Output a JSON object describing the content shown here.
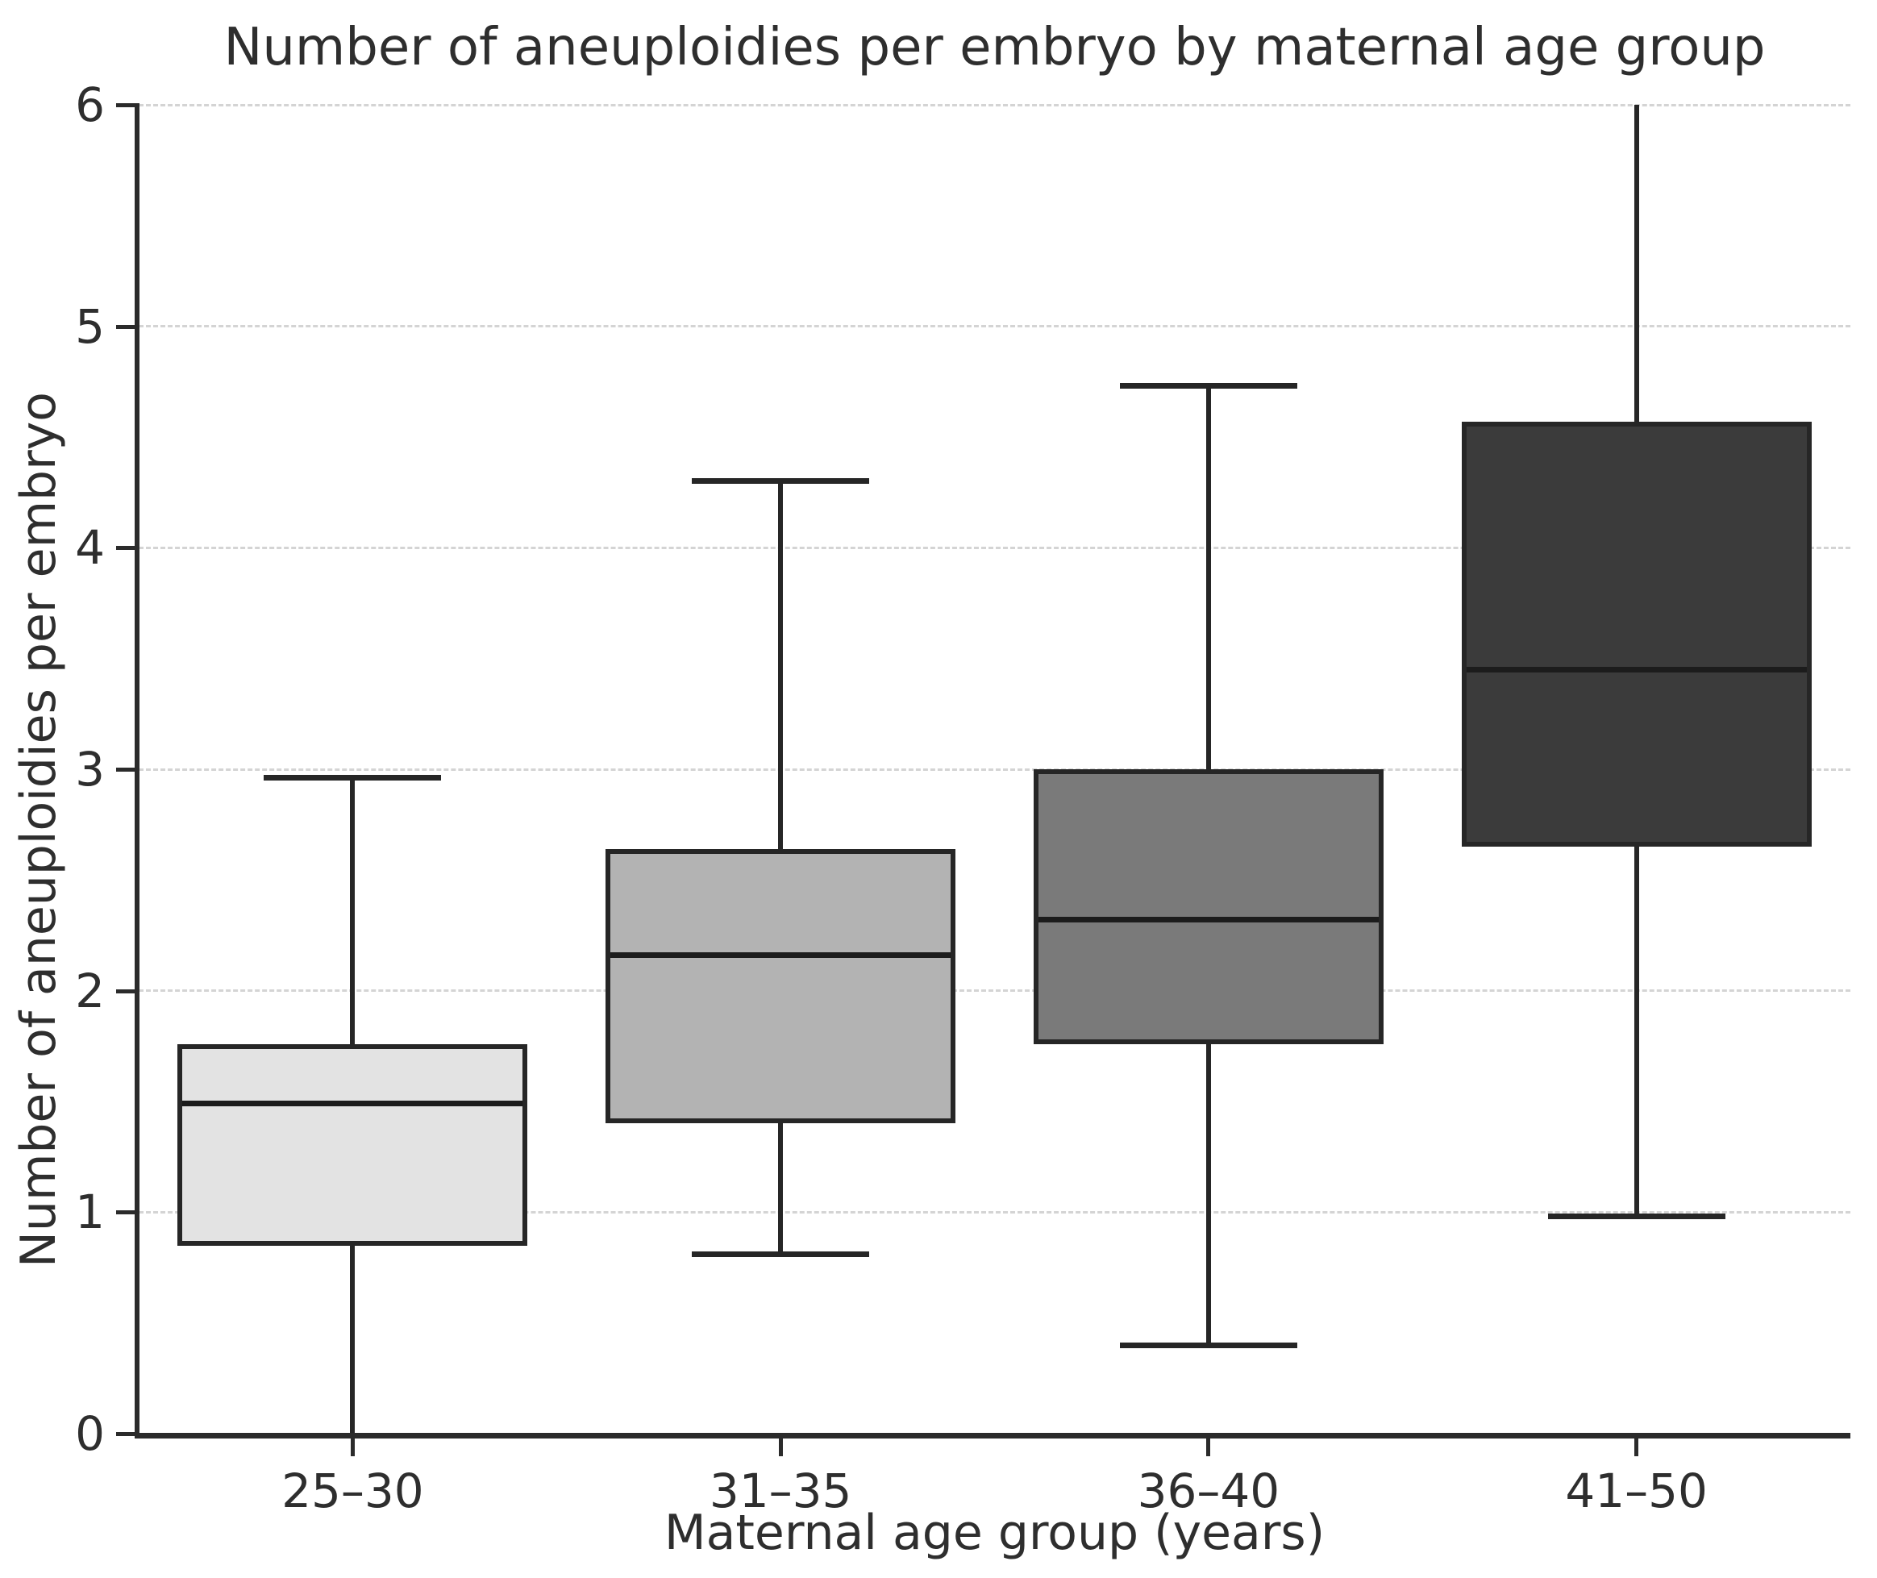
{
  "chart_data": {
    "type": "box",
    "title": "Number of aneuploidies per embryo by maternal age group",
    "xlabel": "Maternal age group (years)",
    "ylabel": "Number of aneuploidies per embryo",
    "categories": [
      "25–30",
      "31–35",
      "36–40",
      "41–50"
    ],
    "y_ticks": [
      "0",
      "1",
      "2",
      "3",
      "4",
      "5",
      "6"
    ],
    "ylim": [
      0,
      6
    ],
    "grid": {
      "horizontal": true,
      "style": "dashed"
    },
    "legend_position": "none",
    "series": [
      {
        "category": "25–30",
        "whisker_low": 0.0,
        "q1": 0.85,
        "median": 1.49,
        "q3": 1.76,
        "whisker_high": 2.96,
        "fill": "#e3e3e3"
      },
      {
        "category": "31–35",
        "whisker_low": 0.81,
        "q1": 1.4,
        "median": 2.16,
        "q3": 2.64,
        "whisker_high": 4.3,
        "fill": "#b3b3b3"
      },
      {
        "category": "36–40",
        "whisker_low": 0.4,
        "q1": 1.76,
        "median": 2.32,
        "q3": 3.0,
        "whisker_high": 4.73,
        "fill": "#7a7a7a"
      },
      {
        "category": "41–50",
        "whisker_low": 0.98,
        "q1": 2.65,
        "median": 3.45,
        "q3": 4.57,
        "whisker_high": 6.0,
        "fill": "#3b3b3b"
      }
    ],
    "colors": {
      "box_edge": "#262626",
      "median": "#1c1c1c",
      "whisker": "#262626",
      "axis": "#2b2b2b",
      "grid": "#d4d4d4",
      "text": "#2e2e2e",
      "background": "#ffffff"
    }
  }
}
